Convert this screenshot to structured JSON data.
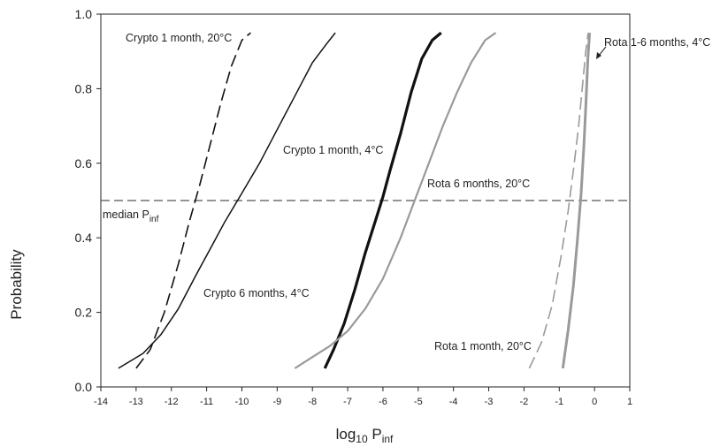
{
  "chart_data": {
    "type": "line",
    "xlabel": {
      "main": "log",
      "sub1": "10",
      "mid": " P",
      "sub2": "inf"
    },
    "ylabel": "Probability",
    "xlim": [
      -14,
      1
    ],
    "ylim": [
      0,
      1
    ],
    "xticks": [
      "-14",
      "-13",
      "-12",
      "-11",
      "-10",
      "-9",
      "-8",
      "-7",
      "-6",
      "-5",
      "-4",
      "-3",
      "-2",
      "-1",
      "0",
      "1"
    ],
    "yticks": [
      "0.0",
      "0.2",
      "0.4",
      "0.6",
      "0.8",
      "1.0"
    ],
    "xtick_values": [
      -14,
      -13,
      -12,
      -11,
      -10,
      -9,
      -8,
      -7,
      -6,
      -5,
      -4,
      -3,
      -2,
      -1,
      0,
      1
    ],
    "ytick_values": [
      0,
      0.2,
      0.4,
      0.6,
      0.8,
      1.0
    ],
    "reference_line": {
      "y": 0.5,
      "label_main": "median P",
      "label_sub": "inf",
      "style": "dashed",
      "color": "#555555"
    },
    "series": [
      {
        "name": "Crypto 1 month, 20°C",
        "color": "#111111",
        "width": 1.6,
        "dash": "14,6",
        "x": [
          -13.0,
          -12.6,
          -12.2,
          -11.8,
          -11.5,
          -11.2,
          -10.9,
          -10.6,
          -10.3,
          -10.0,
          -9.75
        ],
        "y": [
          0.05,
          0.1,
          0.2,
          0.33,
          0.44,
          0.54,
          0.65,
          0.76,
          0.86,
          0.93,
          0.95
        ]
      },
      {
        "name": "Crypto 6 months, 4°C",
        "color": "#111111",
        "width": 1.5,
        "dash": "",
        "x": [
          -13.5,
          -12.8,
          -12.3,
          -11.8,
          -11.3,
          -10.9,
          -10.5,
          -10.0,
          -9.5,
          -9.0,
          -8.5,
          -8.0,
          -7.6,
          -7.35
        ],
        "y": [
          0.05,
          0.09,
          0.14,
          0.21,
          0.3,
          0.37,
          0.44,
          0.52,
          0.6,
          0.69,
          0.78,
          0.87,
          0.92,
          0.95
        ]
      },
      {
        "name": "Crypto 1 month, 4°C",
        "color": "#111111",
        "width": 3.2,
        "dash": "",
        "x": [
          -7.65,
          -7.4,
          -7.1,
          -6.8,
          -6.5,
          -6.2,
          -6.0,
          -5.8,
          -5.5,
          -5.2,
          -4.9,
          -4.6,
          -4.35
        ],
        "y": [
          0.05,
          0.1,
          0.17,
          0.26,
          0.36,
          0.45,
          0.51,
          0.58,
          0.68,
          0.79,
          0.88,
          0.93,
          0.95
        ]
      },
      {
        "name": "Rota 6 months, 20°C",
        "color": "#9a9a9a",
        "width": 2.2,
        "dash": "",
        "x": [
          -8.5,
          -8.0,
          -7.5,
          -7.0,
          -6.5,
          -6.0,
          -5.5,
          -5.1,
          -4.7,
          -4.3,
          -3.9,
          -3.5,
          -3.1,
          -2.8
        ],
        "y": [
          0.05,
          0.08,
          0.11,
          0.15,
          0.21,
          0.29,
          0.4,
          0.5,
          0.6,
          0.7,
          0.79,
          0.87,
          0.93,
          0.95
        ]
      },
      {
        "name": "Rota 1 month, 20°C",
        "color": "#9a9a9a",
        "width": 1.6,
        "dash": "14,6",
        "x": [
          -1.85,
          -1.5,
          -1.2,
          -0.95,
          -0.75,
          -0.6,
          -0.45,
          -0.35,
          -0.25,
          -0.18
        ],
        "y": [
          0.05,
          0.12,
          0.22,
          0.35,
          0.47,
          0.58,
          0.7,
          0.8,
          0.9,
          0.95
        ]
      },
      {
        "name": "Rota 1-6 months, 4°C",
        "color": "#9a9a9a",
        "width": 3.0,
        "dash": "",
        "x": [
          -0.9,
          -0.75,
          -0.6,
          -0.48,
          -0.38,
          -0.3,
          -0.24,
          -0.19,
          -0.14
        ],
        "y": [
          0.05,
          0.15,
          0.27,
          0.4,
          0.52,
          0.65,
          0.77,
          0.88,
          0.95
        ]
      }
    ],
    "annotations": [
      {
        "text": "Crypto 1 month, 20°C",
        "series": "Crypto 1 month, 20°C"
      },
      {
        "text": "Crypto 1 month, 4°C",
        "series": "Crypto 1 month, 4°C"
      },
      {
        "text": "Rota 6 months, 20°C",
        "series": "Rota 6 months, 20°C"
      },
      {
        "text": "Crypto 6 months, 4°C",
        "series": "Crypto 6 months, 4°C"
      },
      {
        "text": "Rota 1 month, 20°C",
        "series": "Rota 1 month, 20°C"
      },
      {
        "text": "Rota 1-6 months, 4°C",
        "series": "Rota 1-6 months, 4°C"
      }
    ],
    "grid": false,
    "legend": "none"
  }
}
